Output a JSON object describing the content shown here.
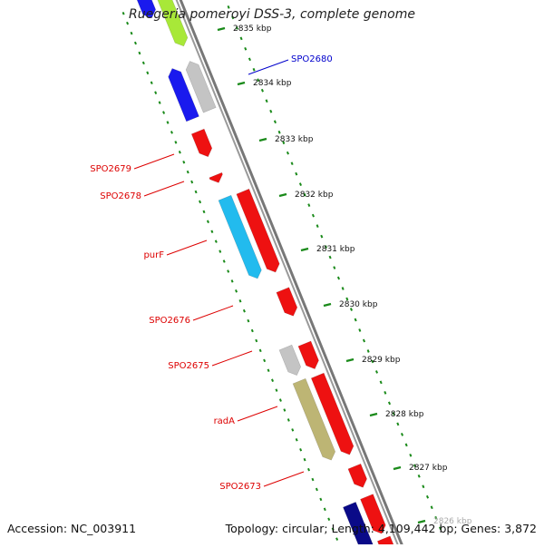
{
  "title": "Ruegeria pomeroyi DSS-3, complete genome",
  "accession": "Accession: NC_003911",
  "summary": "Topology: circular; Length: 4,109,442 bp; Genes: 3,872",
  "colors": {
    "red": "#ee1111",
    "blue": "#1a1aee",
    "navy": "#0a0a88",
    "green_yellow": "#a8e838",
    "light_blue": "#22bbee",
    "gray": "#c4c4c4",
    "khaki": "#bdb574",
    "backbone": "#8a8a8a",
    "tick_green": "#1a8a1a",
    "label_red": "#dd0000",
    "label_blue": "#0000cc"
  },
  "scale_labels": [
    "2835 kbp",
    "2834 kbp",
    "2833 kbp",
    "2832 kbp",
    "2831 kbp",
    "2830 kbp",
    "2829 kbp",
    "2828 kbp",
    "2827 kbp",
    "2826 kbp"
  ],
  "gene_labels": [
    {
      "text": "SPO2680",
      "color": "blue"
    },
    {
      "text": "SPO2679",
      "color": "red"
    },
    {
      "text": "SPO2678",
      "color": "red"
    },
    {
      "text": "purF",
      "color": "red"
    },
    {
      "text": "SPO2676",
      "color": "red"
    },
    {
      "text": "SPO2675",
      "color": "red"
    },
    {
      "text": "radA",
      "color": "red"
    },
    {
      "text": "SPO2673",
      "color": "red"
    }
  ],
  "features": [
    {
      "name": "green-gene",
      "color": "green_yellow"
    },
    {
      "name": "blue-gene-top",
      "color": "blue"
    },
    {
      "name": "blue-gene",
      "color": "blue"
    },
    {
      "name": "gray-gene-top",
      "color": "gray"
    },
    {
      "name": "red-gene-1",
      "color": "red"
    },
    {
      "name": "red-gene-2",
      "color": "red"
    },
    {
      "name": "purF-gene",
      "color": "light_blue"
    },
    {
      "name": "red-gene-3",
      "color": "red"
    },
    {
      "name": "red-gene-4",
      "color": "red"
    },
    {
      "name": "gray-gene-2",
      "color": "gray"
    },
    {
      "name": "red-gene-5",
      "color": "red"
    },
    {
      "name": "radA-gene",
      "color": "khaki"
    },
    {
      "name": "red-gene-6",
      "color": "red"
    },
    {
      "name": "red-gene-7",
      "color": "red"
    },
    {
      "name": "navy-gene",
      "color": "navy"
    },
    {
      "name": "red-gene-8",
      "color": "red"
    },
    {
      "name": "red-gene-9",
      "color": "red"
    }
  ]
}
